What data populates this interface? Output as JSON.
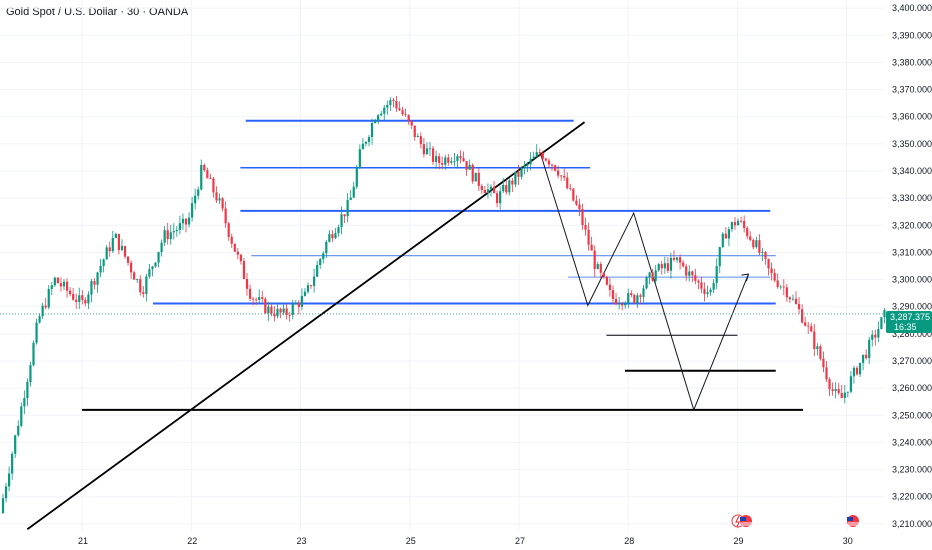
{
  "header": {
    "title": "Gold Spot / U.S. Dollar · 30 · OANDA"
  },
  "price_badge": {
    "price": "3,287.375",
    "countdown": "16:35",
    "color": "#089981"
  },
  "colors": {
    "up": "#089981",
    "down": "#f23645",
    "blue_line": "#2962ff",
    "light_blue_line": "#5b8def",
    "black_line": "#000000"
  },
  "chart_data": {
    "type": "candlestick",
    "title": "Gold Spot / U.S. Dollar · 30 · OANDA",
    "ylim": [
      3207,
      3403
    ],
    "y_ticks": [
      "3,210.000",
      "3,220.000",
      "3,230.000",
      "3,240.000",
      "3,250.000",
      "3,260.000",
      "3,270.000",
      "3,280.000",
      "3,290.000",
      "3,300.000",
      "3,310.000",
      "3,320.000",
      "3,330.000",
      "3,340.000",
      "3,350.000",
      "3,360.000",
      "3,370.000",
      "3,380.000",
      "3,390.000",
      "3,400.000"
    ],
    "y_tick_values": [
      3210,
      3220,
      3230,
      3240,
      3250,
      3260,
      3270,
      3280,
      3290,
      3300,
      3310,
      3320,
      3330,
      3340,
      3350,
      3360,
      3370,
      3380,
      3390,
      3400
    ],
    "x_ticks": [
      "21",
      "22",
      "23",
      "25",
      "27",
      "28",
      "29",
      "30"
    ],
    "x_tick_values": [
      21,
      22,
      23,
      24,
      25,
      26,
      27,
      28
    ],
    "xlim": [
      20.25,
      28.35
    ],
    "last_price": 3287.375,
    "close_path": [
      [
        20.25,
        3214
      ],
      [
        20.5,
        3264
      ],
      [
        20.6,
        3285
      ],
      [
        20.75,
        3300
      ],
      [
        21.0,
        3291
      ],
      [
        21.3,
        3316
      ],
      [
        21.55,
        3296
      ],
      [
        21.75,
        3316
      ],
      [
        21.97,
        3321
      ],
      [
        22.1,
        3341
      ],
      [
        22.25,
        3329
      ],
      [
        22.4,
        3311
      ],
      [
        22.55,
        3294
      ],
      [
        22.7,
        3289
      ],
      [
        22.85,
        3287
      ],
      [
        23.05,
        3294
      ],
      [
        23.25,
        3315
      ],
      [
        23.45,
        3328
      ],
      [
        23.55,
        3347
      ],
      [
        23.7,
        3362
      ],
      [
        23.85,
        3366
      ],
      [
        23.95,
        3360
      ],
      [
        24.1,
        3350
      ],
      [
        24.25,
        3343
      ],
      [
        24.45,
        3347
      ],
      [
        24.6,
        3337
      ],
      [
        24.8,
        3330
      ],
      [
        25.0,
        3339
      ],
      [
        25.2,
        3347
      ],
      [
        25.35,
        3341
      ],
      [
        25.55,
        3325
      ],
      [
        25.7,
        3305
      ],
      [
        25.85,
        3293
      ],
      [
        26.05,
        3293
      ],
      [
        26.25,
        3303
      ],
      [
        26.45,
        3307
      ],
      [
        26.6,
        3300
      ],
      [
        26.75,
        3295
      ],
      [
        26.88,
        3317
      ],
      [
        27.0,
        3322
      ],
      [
        27.15,
        3314
      ],
      [
        27.3,
        3302
      ],
      [
        27.45,
        3296
      ],
      [
        27.6,
        3286
      ],
      [
        27.75,
        3272
      ],
      [
        27.88,
        3258
      ],
      [
        27.95,
        3256
      ],
      [
        28.05,
        3264
      ],
      [
        28.2,
        3275
      ],
      [
        28.35,
        3287
      ]
    ],
    "horizontal_levels": [
      {
        "y": 3358.5,
        "x1": 22.5,
        "x2": 25.5,
        "color": "blue",
        "width": 2
      },
      {
        "y": 3341.2,
        "x1": 22.45,
        "x2": 25.65,
        "color": "blue",
        "width": 1.5
      },
      {
        "y": 3325.3,
        "x1": 22.45,
        "x2": 27.3,
        "color": "blue",
        "width": 2
      },
      {
        "y": 3308.8,
        "x1": 22.55,
        "x2": 27.35,
        "color": "light-blue",
        "width": 1.2
      },
      {
        "y": 3300.9,
        "x1": 25.45,
        "x2": 27.3,
        "color": "light-blue",
        "width": 1
      },
      {
        "y": 3291.2,
        "x1": 21.65,
        "x2": 27.35,
        "color": "blue",
        "width": 2
      },
      {
        "y": 3279.5,
        "x1": 25.8,
        "x2": 27.0,
        "color": "black",
        "width": 1
      },
      {
        "y": 3266.4,
        "x1": 25.97,
        "x2": 27.35,
        "color": "black",
        "width": 2
      },
      {
        "y": 3252.0,
        "x1": 21.0,
        "x2": 27.6,
        "color": "black",
        "width": 2
      }
    ],
    "trend_line": {
      "x1": 20.5,
      "y1": 3208,
      "x2": 25.6,
      "y2": 3358
    },
    "zigzag": [
      [
        25.2,
        3346
      ],
      [
        25.63,
        3290.5
      ],
      [
        26.05,
        3324.5
      ],
      [
        26.6,
        3252
      ],
      [
        27.1,
        3302
      ]
    ]
  }
}
